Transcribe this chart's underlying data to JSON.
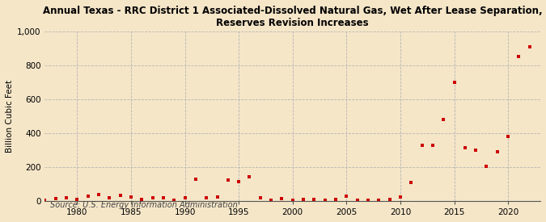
{
  "title_line1": "Annual Texas - RRC District 1 Associated-Dissolved Natural Gas, Wet After Lease Separation,",
  "title_line2": "Reserves Revision Increases",
  "ylabel": "Billion Cubic Feet",
  "source": "Source: U.S. Energy Information Administration",
  "background_color": "#f5e6c8",
  "marker_color": "#cc0000",
  "xlim": [
    1977,
    2023
  ],
  "ylim": [
    0,
    1000
  ],
  "yticks": [
    0,
    200,
    400,
    600,
    800,
    1000
  ],
  "ytick_labels": [
    "0",
    "200",
    "400",
    "600",
    "800",
    "1,000"
  ],
  "xticks": [
    1980,
    1985,
    1990,
    1995,
    2000,
    2005,
    2010,
    2015,
    2020
  ],
  "years": [
    1977,
    1978,
    1979,
    1980,
    1981,
    1982,
    1983,
    1984,
    1985,
    1986,
    1987,
    1988,
    1989,
    1990,
    1991,
    1992,
    1993,
    1994,
    1995,
    1996,
    1997,
    1998,
    1999,
    2000,
    2001,
    2002,
    2003,
    2004,
    2005,
    2006,
    2007,
    2008,
    2009,
    2010,
    2011,
    2012,
    2013,
    2014,
    2015,
    2016,
    2017,
    2018,
    2019,
    2020,
    2021,
    2022
  ],
  "values": [
    5,
    15,
    20,
    10,
    30,
    40,
    20,
    35,
    25,
    10,
    20,
    20,
    5,
    20,
    130,
    20,
    25,
    125,
    115,
    145,
    20,
    5,
    15,
    5,
    8,
    8,
    5,
    8,
    30,
    5,
    5,
    5,
    8,
    25,
    110,
    330,
    330,
    480,
    700,
    315,
    300,
    205,
    290,
    380,
    850,
    910
  ]
}
